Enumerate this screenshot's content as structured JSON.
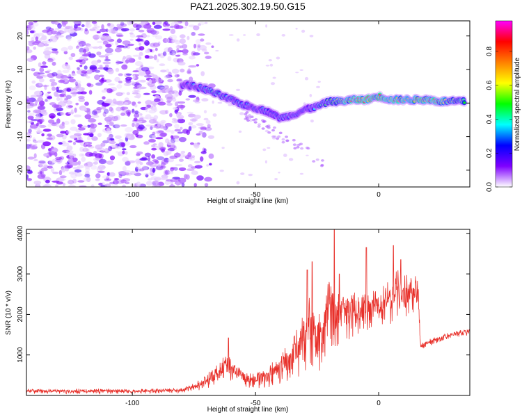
{
  "chart_data": [
    {
      "type": "heatmap",
      "title": "PAZ1.2025.302.19.50.G15",
      "xlabel": "Height of straight line (km)",
      "ylabel": "Frequency (Hz)",
      "xlim": [
        -143,
        37
      ],
      "ylim": [
        -25,
        24.5
      ],
      "xticks": [
        -100,
        -50,
        0
      ],
      "yticks": [
        -20,
        -10,
        0,
        10,
        20
      ],
      "xtick_labels": [
        "-100",
        "-50",
        "0"
      ],
      "ytick_labels": [
        "-20",
        "-10",
        "0",
        "10",
        "20"
      ],
      "ridge": {
        "x": [
          -80,
          -75,
          -70,
          -65,
          -60,
          -55,
          -50,
          -45,
          -40,
          -35,
          -30,
          -25,
          -20,
          -15,
          -10,
          -5,
          0,
          5,
          10,
          15,
          20,
          25,
          30,
          35
        ],
        "y": [
          5.5,
          5,
          4,
          2.5,
          1,
          -0.5,
          -1.5,
          -2.5,
          -4.5,
          -3.5,
          -2,
          -1,
          0.5,
          0.5,
          1,
          1,
          2,
          1,
          1,
          1,
          1,
          0.5,
          0.5,
          0.5
        ],
        "amplitude": [
          0.25,
          0.3,
          0.35,
          0.4,
          0.35,
          0.35,
          0.3,
          0.3,
          0.3,
          0.3,
          0.3,
          0.35,
          0.45,
          0.6,
          0.75,
          0.8,
          0.8,
          0.75,
          0.7,
          0.75,
          0.8,
          0.7,
          0.6,
          0.55
        ]
      },
      "noise_region_x": [
        -143,
        -73
      ],
      "colorbar": {
        "label": "Normalized spectral amplitude",
        "range": [
          0.0,
          0.98
        ],
        "ticks": [
          0.0,
          0.2,
          0.4,
          0.6,
          0.8
        ],
        "tick_labels": [
          "0.0",
          "0.2",
          "0.4",
          "0.6",
          "0.8"
        ],
        "colormap": [
          "#ffffff",
          "#7f00ff",
          "#0000ff",
          "#00ffff",
          "#00ff00",
          "#ffff00",
          "#ff8000",
          "#ff0000",
          "#ff00ff"
        ]
      }
    },
    {
      "type": "line",
      "xlabel": "Height of straight line (km)",
      "ylabel": "SNR (10 * v/v)",
      "xlim": [
        -143,
        37
      ],
      "ylim": [
        0,
        4100
      ],
      "xticks": [
        -100,
        -50,
        0
      ],
      "yticks": [
        1000,
        2000,
        3000,
        4000
      ],
      "xtick_labels": [
        "-100",
        "-50",
        "0"
      ],
      "ytick_labels": [
        "1000",
        "2000",
        "3000",
        "4000"
      ],
      "line_color": "#e8302a",
      "series": [
        {
          "name": "SNR",
          "envelope_x": [
            -143,
            -120,
            -100,
            -80,
            -75,
            -70,
            -65,
            -62,
            -60,
            -55,
            -50,
            -45,
            -40,
            -35,
            -30,
            -28,
            -25,
            -22,
            -20,
            -18,
            -15,
            -10,
            -5,
            0,
            3,
            5,
            7,
            10,
            12,
            15,
            16,
            17,
            20,
            25,
            30,
            35,
            37
          ],
          "envelope_center": [
            100,
            100,
            100,
            120,
            200,
            350,
            550,
            700,
            600,
            400,
            350,
            450,
            650,
            900,
            1300,
            1700,
            1200,
            1500,
            2300,
            1800,
            1900,
            2000,
            2000,
            2150,
            2300,
            2200,
            2500,
            2400,
            2500,
            2500,
            2450,
            1200,
            1300,
            1400,
            1500,
            1550,
            1550
          ],
          "envelope_spread": [
            60,
            60,
            60,
            60,
            100,
            180,
            300,
            350,
            300,
            200,
            180,
            250,
            400,
            500,
            800,
            900,
            700,
            900,
            1000,
            800,
            700,
            550,
            500,
            500,
            550,
            500,
            650,
            550,
            500,
            450,
            400,
            80,
            80,
            80,
            80,
            80,
            80
          ],
          "peaks": [
            [
              -18,
              4100
            ],
            [
              -5,
              3650
            ],
            [
              6,
              3700
            ],
            [
              -29,
              3100
            ],
            [
              -27,
              3300
            ],
            [
              -61,
              1420
            ],
            [
              9,
              3350
            ],
            [
              -16,
              3000
            ]
          ]
        }
      ]
    }
  ]
}
